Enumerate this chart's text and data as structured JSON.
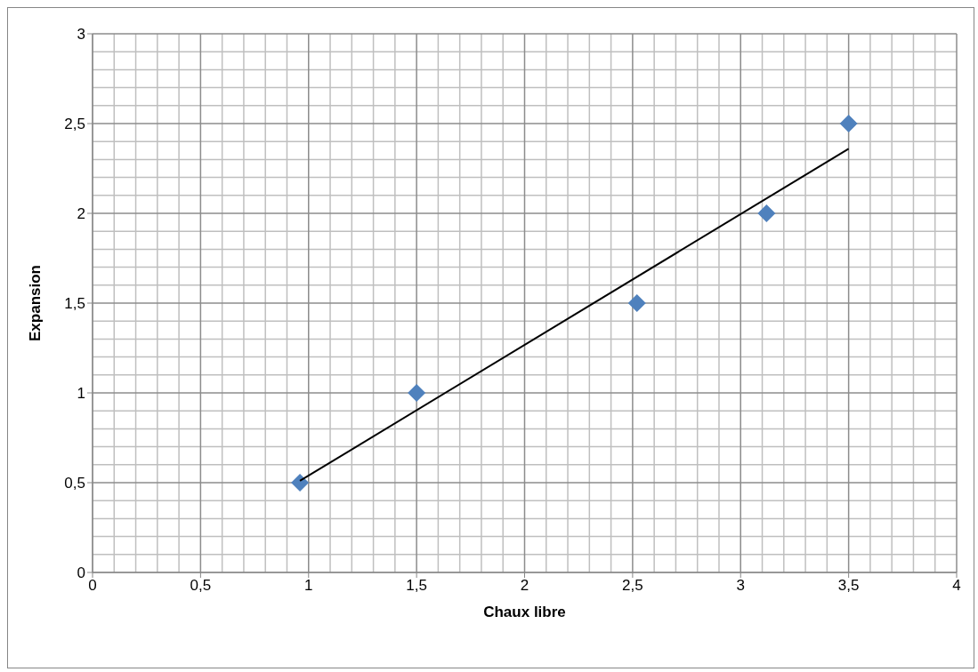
{
  "chart_data": {
    "type": "scatter",
    "xlabel": "Chaux libre",
    "ylabel": "Expansion",
    "series": [
      {
        "color": "#4f81bd",
        "marker": "diamond",
        "x": [
          0.96,
          1.5,
          2.52,
          3.12,
          3.5
        ],
        "values": [
          0.5,
          1,
          1.5,
          2,
          2.5
        ]
      },
      {
        "type": "line",
        "color": "#000000",
        "marker": "none",
        "x": [
          0.96,
          3.5
        ],
        "values": [
          0.51,
          2.36
        ]
      }
    ],
    "xlim": [
      0,
      4
    ],
    "ylim": [
      0,
      3
    ],
    "xticks": [
      0,
      {
        "value": 0.5,
        "label": "0,5"
      },
      1,
      {
        "value": 1.5,
        "label": "1,5"
      },
      2,
      {
        "value": 2.5,
        "label": "2,5"
      },
      3,
      {
        "value": 3.5,
        "label": "3,5"
      },
      4
    ],
    "yticks": [
      0,
      {
        "value": 0.5,
        "label": "0,5"
      },
      1,
      {
        "value": 1.5,
        "label": "1,5"
      },
      2,
      {
        "value": 2.5,
        "label": "2,5"
      },
      3
    ],
    "grid": true
  }
}
